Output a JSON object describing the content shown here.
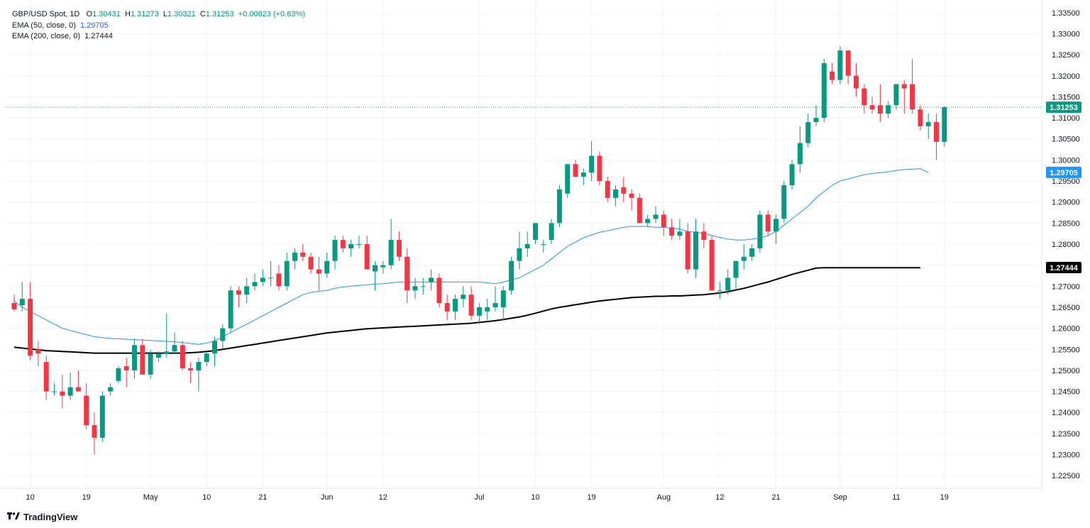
{
  "legend": {
    "symbol": "GBP/USD Spot, 1D",
    "ohlc": {
      "o_label": "O",
      "o": "1.30431",
      "h_label": "H",
      "h": "1.31273",
      "l_label": "L",
      "l": "1.30321",
      "c_label": "C",
      "c": "1.31253",
      "change": "+0.00823 (+0.63%)"
    },
    "ema50": {
      "label": "EMA (50, close, 0)",
      "value": "1.29705"
    },
    "ema200": {
      "label": "EMA (200, close, 0)",
      "value": "1.27444"
    }
  },
  "branding": {
    "name": "TradingView"
  },
  "colors": {
    "up": "#089981",
    "down": "#f23645",
    "ema50": "#2196f3",
    "ema200": "#000000",
    "last_price": "#089981",
    "grid": "#f0f3fa",
    "text": "#131722"
  },
  "chart_data": {
    "type": "candlestick",
    "title": "",
    "xlabel": "",
    "ylabel": "",
    "ylim": [
      1.222,
      1.338
    ],
    "y_ticks": [
      "1.33500",
      "1.33000",
      "1.32500",
      "1.32000",
      "1.31500",
      "1.31000",
      "1.30500",
      "1.30000",
      "1.29500",
      "1.29000",
      "1.28500",
      "1.28000",
      "1.27500",
      "1.27000",
      "1.26500",
      "1.26000",
      "1.25500",
      "1.25000",
      "1.24500",
      "1.24000",
      "1.23500",
      "1.23000",
      "1.22500"
    ],
    "x_ticks": [
      {
        "label": "10",
        "bar": 2
      },
      {
        "label": "19",
        "bar": 9
      },
      {
        "label": "May",
        "bar": 17
      },
      {
        "label": "10",
        "bar": 24
      },
      {
        "label": "21",
        "bar": 31
      },
      {
        "label": "Jun",
        "bar": 39
      },
      {
        "label": "12",
        "bar": 46
      },
      {
        "label": "Jul",
        "bar": 58
      },
      {
        "label": "10",
        "bar": 65
      },
      {
        "label": "19",
        "bar": 72
      },
      {
        "label": "Aug",
        "bar": 81
      },
      {
        "label": "12",
        "bar": 88
      },
      {
        "label": "21",
        "bar": 95
      },
      {
        "label": "Sep",
        "bar": 103
      },
      {
        "label": "11",
        "bar": 110
      },
      {
        "label": "19",
        "bar": 116
      }
    ],
    "candles": [
      [
        1.266,
        1.268,
        1.264,
        1.2645
      ],
      [
        1.2655,
        1.271,
        1.264,
        1.267
      ],
      [
        1.267,
        1.271,
        1.2525,
        1.2535
      ],
      [
        1.255,
        1.257,
        1.251,
        1.254
      ],
      [
        1.252,
        1.2535,
        1.243,
        1.245
      ],
      [
        1.245,
        1.247,
        1.244,
        1.245
      ],
      [
        1.245,
        1.249,
        1.241,
        1.244
      ],
      [
        1.244,
        1.2495,
        1.243,
        1.246
      ],
      [
        1.246,
        1.25,
        1.245,
        1.245
      ],
      [
        1.244,
        1.247,
        1.236,
        1.237
      ],
      [
        1.237,
        1.24,
        1.23,
        1.234
      ],
      [
        1.234,
        1.245,
        1.233,
        1.244
      ],
      [
        1.245,
        1.247,
        1.244,
        1.246
      ],
      [
        1.2475,
        1.251,
        1.247,
        1.2505
      ],
      [
        1.251,
        1.253,
        1.246,
        1.25
      ],
      [
        1.25,
        1.2575,
        1.248,
        1.256
      ],
      [
        1.256,
        1.2575,
        1.249,
        1.249
      ],
      [
        1.249,
        1.255,
        1.248,
        1.254
      ],
      [
        1.253,
        1.2545,
        1.252,
        1.254
      ],
      [
        1.254,
        1.2635,
        1.253,
        1.2545
      ],
      [
        1.2545,
        1.259,
        1.254,
        1.256
      ],
      [
        1.256,
        1.257,
        1.25,
        1.2505
      ],
      [
        1.2505,
        1.252,
        1.247,
        1.25
      ],
      [
        1.25,
        1.253,
        1.245,
        1.252
      ],
      [
        1.252,
        1.2545,
        1.251,
        1.254
      ],
      [
        1.254,
        1.258,
        1.251,
        1.257
      ],
      [
        1.257,
        1.261,
        1.255,
        1.26
      ],
      [
        1.26,
        1.27,
        1.259,
        1.269
      ],
      [
        1.269,
        1.27,
        1.265,
        1.268
      ],
      [
        1.268,
        1.272,
        1.266,
        1.27
      ],
      [
        1.27,
        1.273,
        1.269,
        1.271
      ],
      [
        1.271,
        1.274,
        1.27,
        1.272
      ],
      [
        1.272,
        1.276,
        1.27,
        1.272
      ],
      [
        1.273,
        1.275,
        1.269,
        1.27
      ],
      [
        1.27,
        1.278,
        1.269,
        1.276
      ],
      [
        1.276,
        1.279,
        1.274,
        1.278
      ],
      [
        1.278,
        1.28,
        1.276,
        1.277
      ],
      [
        1.277,
        1.278,
        1.273,
        1.274
      ],
      [
        1.274,
        1.277,
        1.269,
        1.273
      ],
      [
        1.273,
        1.278,
        1.272,
        1.276
      ],
      [
        1.276,
        1.282,
        1.274,
        1.281
      ],
      [
        1.281,
        1.282,
        1.278,
        1.279
      ],
      [
        1.279,
        1.281,
        1.277,
        1.28
      ],
      [
        1.28,
        1.282,
        1.279,
        1.28
      ],
      [
        1.28,
        1.282,
        1.274,
        1.274
      ],
      [
        1.2735,
        1.276,
        1.269,
        1.275
      ],
      [
        1.2745,
        1.276,
        1.273,
        1.275
      ],
      [
        1.275,
        1.286,
        1.274,
        1.281
      ],
      [
        1.281,
        1.283,
        1.276,
        1.277
      ],
      [
        1.277,
        1.279,
        1.266,
        1.269
      ],
      [
        1.269,
        1.272,
        1.267,
        1.27
      ],
      [
        1.27,
        1.272,
        1.268,
        1.27
      ],
      [
        1.271,
        1.274,
        1.269,
        1.272
      ],
      [
        1.272,
        1.273,
        1.265,
        1.266
      ],
      [
        1.266,
        1.268,
        1.262,
        1.264
      ],
      [
        1.264,
        1.268,
        1.262,
        1.267
      ],
      [
        1.267,
        1.27,
        1.265,
        1.268
      ],
      [
        1.268,
        1.27,
        1.262,
        1.263
      ],
      [
        1.263,
        1.266,
        1.261,
        1.265
      ],
      [
        1.264,
        1.267,
        1.262,
        1.265
      ],
      [
        1.265,
        1.27,
        1.264,
        1.266
      ],
      [
        1.265,
        1.27,
        1.262,
        1.269
      ],
      [
        1.269,
        1.277,
        1.268,
        1.276
      ],
      [
        1.276,
        1.283,
        1.274,
        1.279
      ],
      [
        1.279,
        1.283,
        1.277,
        1.28
      ],
      [
        1.281,
        1.285,
        1.28,
        1.285
      ],
      [
        1.28,
        1.281,
        1.278,
        1.28
      ],
      [
        1.281,
        1.286,
        1.28,
        1.285
      ],
      [
        1.285,
        1.294,
        1.284,
        1.293
      ],
      [
        1.292,
        1.299,
        1.291,
        1.299
      ],
      [
        1.299,
        1.3,
        1.296,
        1.296
      ],
      [
        1.296,
        1.298,
        1.294,
        1.297
      ],
      [
        1.297,
        1.3045,
        1.295,
        1.301
      ],
      [
        1.301,
        1.302,
        1.294,
        1.295
      ],
      [
        1.295,
        1.296,
        1.29,
        1.291
      ],
      [
        1.291,
        1.294,
        1.289,
        1.293
      ],
      [
        1.2935,
        1.296,
        1.29,
        1.292
      ],
      [
        1.292,
        1.293,
        1.288,
        1.291
      ],
      [
        1.291,
        1.292,
        1.285,
        1.285
      ],
      [
        1.285,
        1.287,
        1.284,
        1.286
      ],
      [
        1.286,
        1.289,
        1.285,
        1.287
      ],
      [
        1.287,
        1.288,
        1.282,
        1.284
      ],
      [
        1.284,
        1.286,
        1.281,
        1.282
      ],
      [
        1.282,
        1.286,
        1.281,
        1.283
      ],
      [
        1.283,
        1.285,
        1.273,
        1.274
      ],
      [
        1.274,
        1.286,
        1.272,
        1.283
      ],
      [
        1.283,
        1.285,
        1.279,
        1.281
      ],
      [
        1.281,
        1.282,
        1.269,
        1.269
      ],
      [
        1.269,
        1.271,
        1.267,
        1.269
      ],
      [
        1.269,
        1.274,
        1.268,
        1.272
      ],
      [
        1.272,
        1.276,
        1.269,
        1.276
      ],
      [
        1.276,
        1.28,
        1.274,
        1.277
      ],
      [
        1.277,
        1.28,
        1.276,
        1.279
      ],
      [
        1.279,
        1.288,
        1.278,
        1.287
      ],
      [
        1.287,
        1.288,
        1.282,
        1.283
      ],
      [
        1.283,
        1.287,
        1.28,
        1.286
      ],
      [
        1.286,
        1.295,
        1.285,
        1.294
      ],
      [
        1.294,
        1.3,
        1.293,
        1.299
      ],
      [
        1.299,
        1.308,
        1.297,
        1.304
      ],
      [
        1.304,
        1.311,
        1.303,
        1.309
      ],
      [
        1.309,
        1.313,
        1.308,
        1.31
      ],
      [
        1.31,
        1.324,
        1.309,
        1.323
      ],
      [
        1.321,
        1.323,
        1.318,
        1.319
      ],
      [
        1.319,
        1.327,
        1.318,
        1.326
      ],
      [
        1.326,
        1.326,
        1.318,
        1.32
      ],
      [
        1.32,
        1.323,
        1.315,
        1.317
      ],
      [
        1.317,
        1.318,
        1.311,
        1.313
      ],
      [
        1.313,
        1.315,
        1.311,
        1.312
      ],
      [
        1.313,
        1.318,
        1.309,
        1.311
      ],
      [
        1.311,
        1.314,
        1.31,
        1.313
      ],
      [
        1.313,
        1.318,
        1.312,
        1.318
      ],
      [
        1.318,
        1.319,
        1.311,
        1.317
      ],
      [
        1.318,
        1.324,
        1.311,
        1.312
      ]
    ],
    "last_candles": [
      [
        1.312,
        1.313,
        1.307,
        1.308
      ],
      [
        1.308,
        1.311,
        1.305,
        1.309
      ],
      [
        1.309,
        1.311,
        1.3,
        1.3043
      ],
      [
        1.30431,
        1.31273,
        1.30321,
        1.31253
      ]
    ],
    "ema50": [
      1.2665,
      1.265,
      1.264,
      1.263,
      1.262,
      1.261,
      1.26,
      1.2595,
      1.259,
      1.2585,
      1.258,
      1.2578,
      1.2576,
      1.2575,
      1.2574,
      1.2573,
      1.2572,
      1.2571,
      1.257,
      1.2569,
      1.2568,
      1.2566,
      1.2564,
      1.2562,
      1.2565,
      1.257,
      1.258,
      1.259,
      1.26,
      1.261,
      1.262,
      1.263,
      1.264,
      1.265,
      1.266,
      1.267,
      1.268,
      1.2685,
      1.2688,
      1.269,
      1.2695,
      1.2698,
      1.27,
      1.2702,
      1.2703,
      1.2705,
      1.2706,
      1.2708,
      1.271,
      1.271,
      1.271,
      1.271,
      1.271,
      1.271,
      1.271,
      1.271,
      1.271,
      1.271,
      1.271,
      1.2708,
      1.2706,
      1.271,
      1.2715,
      1.272,
      1.273,
      1.274,
      1.275,
      1.2765,
      1.278,
      1.2795,
      1.2805,
      1.2815,
      1.2822,
      1.2828,
      1.2832,
      1.2836,
      1.284,
      1.2842,
      1.2842,
      1.2842,
      1.284,
      1.284,
      1.2838,
      1.2836,
      1.283,
      1.2828,
      1.2826,
      1.282,
      1.2816,
      1.2812,
      1.281,
      1.281,
      1.2812,
      1.2815,
      1.282,
      1.283,
      1.2845,
      1.286,
      1.2875,
      1.289,
      1.291,
      1.2925,
      1.294,
      1.295,
      1.2955,
      1.296,
      1.2965,
      1.2968,
      1.297,
      1.2972,
      1.2975,
      1.2977,
      1.2978,
      1.2979,
      1.297
    ],
    "ema200": [
      1.2555,
      1.2553,
      1.2551,
      1.2549,
      1.2547,
      1.2546,
      1.2545,
      1.2544,
      1.2543,
      1.2542,
      1.2541,
      1.2541,
      1.2541,
      1.2541,
      1.2541,
      1.2541,
      1.2541,
      1.2541,
      1.2541,
      1.2541,
      1.2541,
      1.2541,
      1.2542,
      1.2543,
      1.2545,
      1.2547,
      1.255,
      1.2553,
      1.2556,
      1.2559,
      1.2562,
      1.2565,
      1.2568,
      1.2571,
      1.2574,
      1.2577,
      1.258,
      1.2583,
      1.2586,
      1.2589,
      1.2591,
      1.2593,
      1.2595,
      1.2597,
      1.2599,
      1.26,
      1.2601,
      1.2602,
      1.2603,
      1.2604,
      1.2605,
      1.2606,
      1.2607,
      1.2608,
      1.2609,
      1.261,
      1.2611,
      1.2612,
      1.2614,
      1.2616,
      1.2618,
      1.2621,
      1.2624,
      1.2627,
      1.2631,
      1.2636,
      1.2641,
      1.2646,
      1.265,
      1.2653,
      1.2656,
      1.2659,
      1.2662,
      1.2665,
      1.2667,
      1.2669,
      1.2671,
      1.2673,
      1.2674,
      1.2675,
      1.2676,
      1.2676,
      1.2677,
      1.2677,
      1.2678,
      1.2679,
      1.268,
      1.2682,
      1.2684,
      1.2687,
      1.2691,
      1.2695,
      1.27,
      1.2705,
      1.271,
      1.2716,
      1.2722,
      1.2728,
      1.2733,
      1.2738,
      1.2743,
      1.2744,
      1.2744,
      1.2744,
      1.2744,
      1.2744,
      1.2744,
      1.2744,
      1.2744,
      1.2744,
      1.2744,
      1.2744,
      1.2744,
      1.2744
    ],
    "last_price": 1.31253,
    "ema50_last": 1.29705,
    "ema200_last": 1.27444,
    "last_price_label": "1.31253",
    "ema50_label": "1.29705",
    "ema200_label": "1.27444"
  }
}
